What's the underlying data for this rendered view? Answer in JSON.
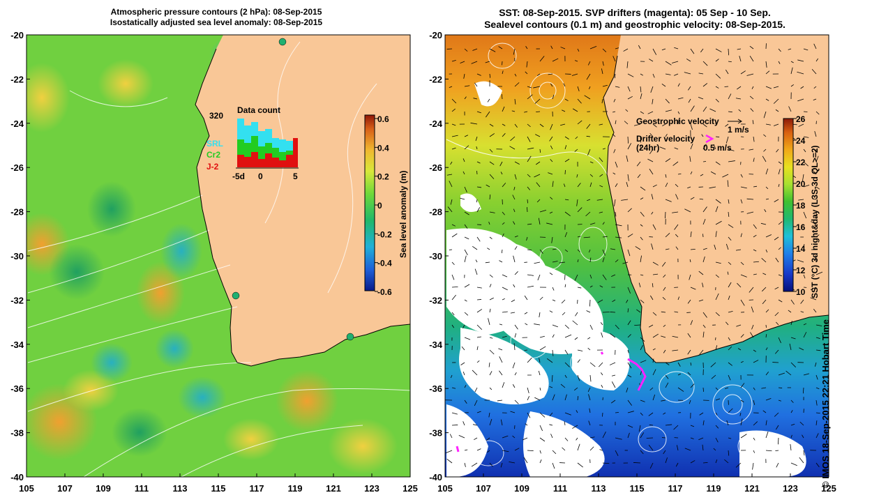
{
  "left_panel": {
    "title_line1": "Atmospheric pressure contours (2 hPa): 08-Sep-2015",
    "title_line2": "Isostatically adjusted sea level anomaly: 08-Sep-2015",
    "colorbar": {
      "label": "Sea level anomaly (m)",
      "ticks": [
        "0.6",
        "0.4",
        "0.2",
        "0",
        "-0.2",
        "-0.4",
        "-0.6"
      ],
      "range": [
        -0.6,
        0.6
      ]
    },
    "data_count": {
      "title": "Data count",
      "max_label": "320",
      "legend": [
        {
          "label": "SRL",
          "color": "#33e0f0"
        },
        {
          "label": "Cr2",
          "color": "#22cc22"
        },
        {
          "label": "J-2",
          "color": "#e01010"
        }
      ],
      "x_ticks": [
        "-5d",
        "0",
        "5"
      ]
    }
  },
  "right_panel": {
    "title_line1": "SST: 08-Sep-2015. SVP drifters (magenta): 05 Sep - 10 Sep.",
    "title_line2": "Sealevel contours (0.1 m) and geostrophic velocity: 08-Sep-2015.",
    "colorbar": {
      "label": "SST (°C) 3d night&day (L3S-3d QL>=2)",
      "ticks": [
        "26",
        "24",
        "22",
        "20",
        "18",
        "16",
        "14",
        "12",
        "10"
      ],
      "range": [
        10,
        26
      ]
    },
    "legend": {
      "geo_label": "Geostrophic velocity",
      "geo_scale": "1 m/s",
      "drifter_label": "Drifter velocity",
      "drifter_sub": "(24hr)",
      "drifter_scale": "0.5 m/s",
      "drifter_color": "#ff22ff"
    }
  },
  "axes": {
    "lat_ticks": [
      "-20",
      "-22",
      "-24",
      "-26",
      "-28",
      "-30",
      "-32",
      "-34",
      "-36",
      "-38",
      "-40"
    ],
    "lon_ticks": [
      "105",
      "107",
      "109",
      "111",
      "113",
      "115",
      "117",
      "119",
      "121",
      "123",
      "125"
    ]
  },
  "colors": {
    "land": "#f9c797"
  },
  "copyright": "© IMOS 18-Sep-2015 22:21 Hobart Time"
}
